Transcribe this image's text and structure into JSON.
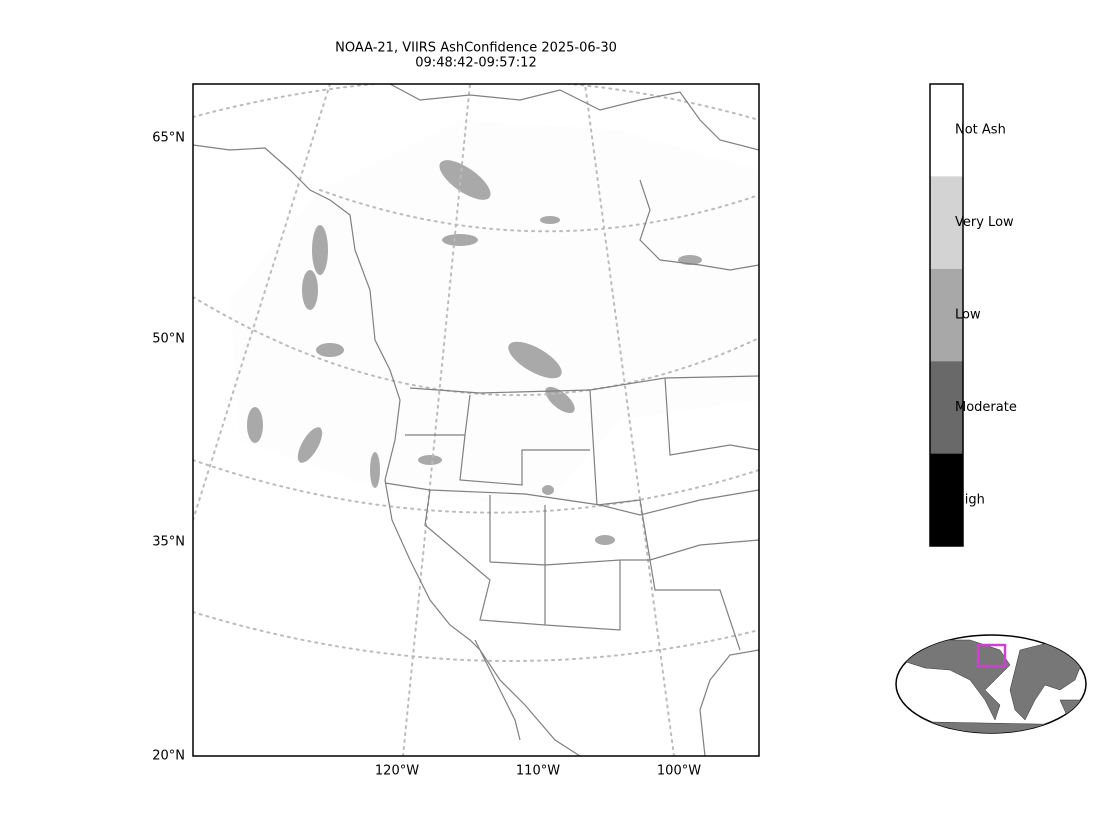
{
  "title": [
    "NOAA-21, VIIRS AshConfidence 2025-06-30",
    "09:48:42-09:57:12"
  ],
  "lat_labels": [
    "65°N",
    "50°N",
    "35°N",
    "20°N"
  ],
  "lon_labels": [
    "120°W",
    "110°W",
    "100°W"
  ],
  "colorbar": {
    "labels": [
      "Not Ash",
      "Very Low",
      "Low",
      "Moderate",
      "High"
    ],
    "colors": [
      "#ffffff",
      "#d3d3d3",
      "#a8a8a8",
      "#696969",
      "#000000"
    ]
  }
}
